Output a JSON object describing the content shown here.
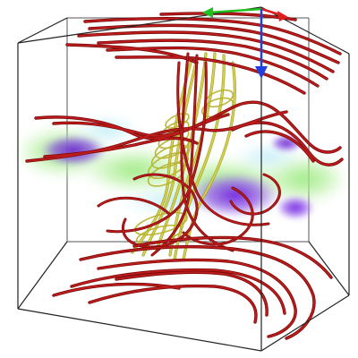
{
  "figure": {
    "description_visible_text": [],
    "elements": {
      "bounding_box": "wireframe-cube",
      "orientation_axes": [
        "x-axis-red",
        "y-axis-green",
        "z-axis-blue"
      ],
      "streamlines_primary": "red-tubes",
      "streamlines_secondary": "yellow-tubes",
      "volume_rendering": "purple-green-slab"
    },
    "colors": {
      "streamline_red": "#b01818",
      "streamline_red_dark": "#7a0a0a",
      "streamline_yellow": "#d6d24a",
      "streamline_yellow_dark": "#9e9a20",
      "volume_green": "#9fe8a0",
      "volume_purple": "#7a35d8",
      "volume_cyan": "#9fe0f0",
      "axis_x": "#e02020",
      "axis_y": "#20c020",
      "axis_z": "#2040e0",
      "box_edge": "#333333"
    }
  }
}
